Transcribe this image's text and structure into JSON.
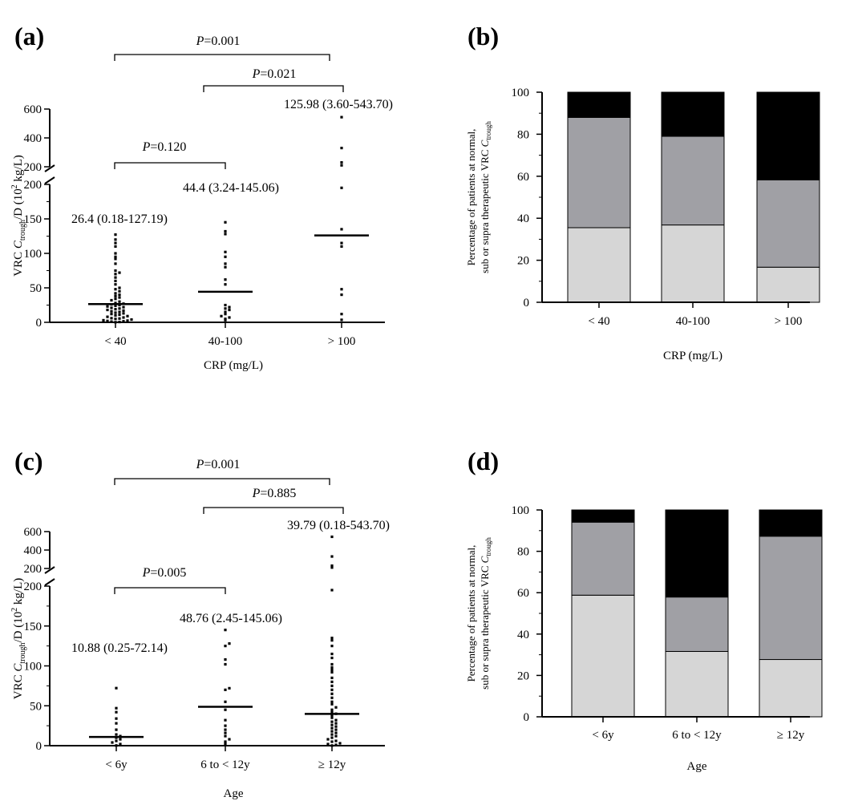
{
  "chart_data": [
    {
      "panel": "(a)",
      "type": "scatter",
      "xlabel": "CRP (mg/L)",
      "ylabel": {
        "pre": "VRC ",
        "c": "C",
        "sub": "trough",
        "post": "/D  (10",
        "sup": "2",
        "end": " kg/L)"
      },
      "categories": [
        "< 40",
        "40-100",
        "> 100"
      ],
      "axis": {
        "lower_range": [
          0,
          200
        ],
        "lower_ticks": [
          0,
          50,
          100,
          150,
          200
        ],
        "upper_ticks": [
          200,
          400,
          600
        ],
        "upper_max": 600
      },
      "medians": [
        26.4,
        44.4,
        125.98
      ],
      "median_labels": [
        "26.4 (0.18-127.19)",
        "44.4 (3.24-145.06)",
        "125.98 (3.60-543.70)"
      ],
      "comparisons": [
        {
          "groups": [
            0,
            2
          ],
          "label": "0.001"
        },
        {
          "groups": [
            1,
            2
          ],
          "label": "0.021"
        },
        {
          "groups": [
            0,
            1
          ],
          "label": "0.120"
        }
      ],
      "p_prefix": "P",
      "points": [
        [
          0.18,
          0.5,
          1,
          1.5,
          2,
          2.5,
          3,
          4,
          5,
          5.5,
          6,
          7,
          8,
          9,
          10,
          11,
          12,
          13,
          14,
          15,
          16,
          17,
          18,
          19,
          20,
          21,
          22,
          23,
          24,
          25,
          26,
          27,
          28,
          30,
          32,
          34,
          36,
          38,
          40,
          42,
          45,
          48,
          50,
          55,
          60,
          65,
          70,
          72,
          75,
          85,
          92,
          95,
          100,
          110,
          115,
          120,
          127.19
        ],
        [
          3.24,
          5,
          7,
          9,
          12,
          15,
          18,
          20,
          22,
          25,
          55,
          62,
          80,
          85,
          95,
          102,
          128,
          132,
          145.06
        ],
        [
          3.6,
          12,
          40,
          48,
          110,
          115,
          135,
          195,
          210,
          230,
          330,
          543.7
        ]
      ]
    },
    {
      "panel": "(b)",
      "type": "bar",
      "stacked": true,
      "xlabel": "CRP (mg/L)",
      "ylabel_line1": "Percentage of patients at normal,",
      "ylabel_line2": {
        "pre": "sub or supra therapeutic VRC ",
        "c": "C",
        "sub": "trough"
      },
      "categories": [
        "< 40",
        "40-100",
        "> 100"
      ],
      "ylim": [
        0,
        100
      ],
      "yticks": [
        0,
        20,
        40,
        60,
        80,
        100
      ],
      "series": [
        {
          "name": "light",
          "color": "#d6d6d6",
          "values": [
            35.5,
            36.8,
            16.7
          ]
        },
        {
          "name": "mid",
          "color": "#a0a0a5",
          "values": [
            52.5,
            42.2,
            41.6
          ]
        },
        {
          "name": "dark",
          "color": "#000000",
          "values": [
            12.0,
            21.0,
            41.7
          ]
        }
      ]
    },
    {
      "panel": "(c)",
      "type": "scatter",
      "xlabel": "Age",
      "ylabel": {
        "pre": "VRC ",
        "c": "C",
        "sub": "trough",
        "post": "/D  (10",
        "sup": "2",
        "end": " kg/L)"
      },
      "categories": [
        "< 6y",
        "6 to < 12y",
        "≥ 12y"
      ],
      "axis": {
        "lower_range": [
          0,
          200
        ],
        "lower_ticks": [
          0,
          50,
          100,
          150,
          200
        ],
        "upper_ticks": [
          200,
          400,
          600
        ],
        "upper_max": 600
      },
      "medians": [
        10.88,
        48.76,
        39.79
      ],
      "median_labels": [
        "10.88 (0.25-72.14)",
        "48.76 (2.45-145.06)",
        "39.79 (0.18-543.70)"
      ],
      "comparisons": [
        {
          "groups": [
            0,
            2
          ],
          "label": "0.001"
        },
        {
          "groups": [
            1,
            2
          ],
          "label": "0.885"
        },
        {
          "groups": [
            0,
            1
          ],
          "label": "0.005"
        }
      ],
      "p_prefix": "P",
      "points": [
        [
          0.25,
          2,
          4,
          6,
          8,
          10,
          12,
          14,
          20,
          28,
          34,
          42,
          47,
          72.14
        ],
        [
          2.45,
          5,
          8,
          12,
          16,
          20,
          25,
          32,
          45,
          55,
          70,
          72,
          102,
          108,
          125,
          128,
          145.06
        ],
        [
          0.18,
          1,
          2,
          3,
          5,
          6,
          8,
          10,
          12,
          14,
          16,
          18,
          20,
          22,
          24,
          26,
          28,
          30,
          32,
          35,
          38,
          40,
          42,
          45,
          48,
          52,
          55,
          60,
          65,
          70,
          75,
          80,
          85,
          92,
          95,
          98,
          102,
          110,
          115,
          125,
          132,
          135,
          195,
          210,
          230,
          330,
          543.7
        ]
      ]
    },
    {
      "panel": "(d)",
      "type": "bar",
      "stacked": true,
      "xlabel": "Age",
      "ylabel_line1": "Percentage of patients at normal,",
      "ylabel_line2": {
        "pre": "sub or supra therapeutic VRC ",
        "c": "C",
        "sub": "trough"
      },
      "categories": [
        "< 6y",
        "6 to < 12y",
        "≥ 12y"
      ],
      "ylim": [
        0,
        100
      ],
      "yticks": [
        0,
        20,
        40,
        60,
        80,
        100
      ],
      "series": [
        {
          "name": "light",
          "color": "#d6d6d6",
          "values": [
            58.8,
            31.6,
            27.7
          ]
        },
        {
          "name": "mid",
          "color": "#a0a0a5",
          "values": [
            35.3,
            26.3,
            59.6
          ]
        },
        {
          "name": "dark",
          "color": "#000000",
          "values": [
            5.9,
            42.1,
            12.7
          ]
        }
      ]
    }
  ]
}
